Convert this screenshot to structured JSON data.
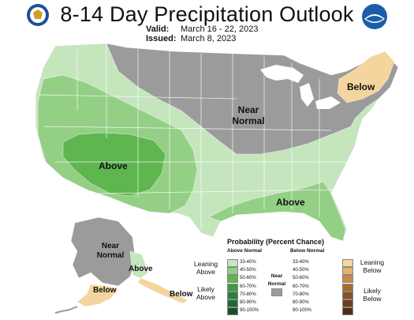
{
  "header": {
    "title": "8-14 Day Precipitation Outlook",
    "valid_label": "Valid:",
    "valid_value": "March 16 - 22, 2023",
    "issued_label": "Issued:",
    "issued_value": "March 8, 2023"
  },
  "logos": {
    "left": "doc-seal-icon",
    "right": "noaa-logo-icon"
  },
  "colors": {
    "near_normal": "#9b9b9b",
    "above": [
      "#c5e6bd",
      "#94cf86",
      "#5fb64f",
      "#3d9d3c",
      "#29833c",
      "#1e6b34",
      "#1a4f24"
    ],
    "below": [
      "#f4d59d",
      "#e3b26d",
      "#c88a3f",
      "#a86a2d",
      "#8a5123",
      "#6d3d1d",
      "#4f2b15"
    ]
  },
  "map_labels": {
    "above_sw": "Above",
    "near_normal": "Near\nNormal",
    "below_ne": "Below",
    "above_se": "Above",
    "ak_near_normal": "Near\nNormal",
    "ak_above": "Above",
    "ak_below": "Below",
    "ak_below_se": "Below"
  },
  "legend": {
    "title": "Probability (Percent Chance)",
    "above_header": "Above Normal",
    "below_header": "Below Normal",
    "above_ranges": [
      "33-40%",
      "40-50%",
      "50-60%",
      "60-70%",
      "70-80%",
      "80-90%",
      "90-100%"
    ],
    "below_ranges": [
      "33-40%",
      "40-50%",
      "50-60%",
      "60-70%",
      "70-80%",
      "80-90%",
      "90-100%"
    ],
    "leaning_above": "Leaning\nAbove",
    "likely_above": "Likely\nAbove",
    "near_normal": "Near\nNormal",
    "leaning_below": "Leaning\nBelow",
    "likely_below": "Likely\nBelow"
  }
}
